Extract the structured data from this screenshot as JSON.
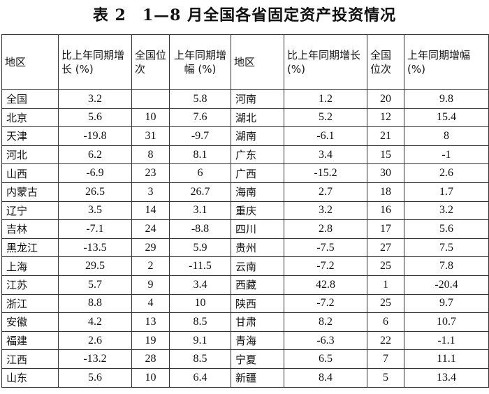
{
  "title": "表 2　1—8 月全国各省固定资产投资情况",
  "headers": {
    "left": [
      "地区",
      "比上年同期增长 (%)",
      "全国位次",
      "上年同期增幅 (%)"
    ],
    "right": [
      "地区",
      "比上年同期增长 (%)",
      "全国位次",
      "上年同期增幅 (%)"
    ]
  },
  "rows": [
    {
      "l": [
        "全国",
        "3.2",
        "",
        "5.8"
      ],
      "r": [
        "河南",
        "1.2",
        "20",
        "9.8"
      ]
    },
    {
      "l": [
        "北京",
        "5.6",
        "10",
        "7.6"
      ],
      "r": [
        "湖北",
        "5.2",
        "12",
        "15.4"
      ]
    },
    {
      "l": [
        "天津",
        "-19.8",
        "31",
        "-9.7"
      ],
      "r": [
        "湖南",
        "-6.1",
        "21",
        "8"
      ]
    },
    {
      "l": [
        "河北",
        "6.2",
        "8",
        "8.1"
      ],
      "r": [
        "广东",
        "3.4",
        "15",
        "-1"
      ]
    },
    {
      "l": [
        "山西",
        "-6.9",
        "23",
        "6"
      ],
      "r": [
        "广西",
        "-15.2",
        "30",
        "2.6"
      ]
    },
    {
      "l": [
        "内蒙古",
        "26.5",
        "3",
        "26.7"
      ],
      "r": [
        "海南",
        "2.7",
        "18",
        "1.7"
      ]
    },
    {
      "l": [
        "辽宁",
        "3.5",
        "14",
        "3.1"
      ],
      "r": [
        "重庆",
        "3.2",
        "16",
        "3.2"
      ]
    },
    {
      "l": [
        "吉林",
        "-7.1",
        "24",
        "-8.8"
      ],
      "r": [
        "四川",
        "2.8",
        "17",
        "5.6"
      ]
    },
    {
      "l": [
        "黑龙江",
        "-13.5",
        "29",
        "5.9"
      ],
      "r": [
        "贵州",
        "-7.5",
        "27",
        "7.5"
      ]
    },
    {
      "l": [
        "上海",
        "29.5",
        "2",
        "-11.5"
      ],
      "r": [
        "云南",
        "-7.2",
        "25",
        "7.8"
      ]
    },
    {
      "l": [
        "江苏",
        "5.7",
        "9",
        "3.4"
      ],
      "r": [
        "西藏",
        "42.8",
        "1",
        "-20.4"
      ]
    },
    {
      "l": [
        "浙江",
        "8.8",
        "4",
        "10"
      ],
      "r": [
        "陕西",
        "-7.2",
        "25",
        "9.7"
      ]
    },
    {
      "l": [
        "安徽",
        "4.2",
        "13",
        "8.5"
      ],
      "r": [
        "甘肃",
        "8.2",
        "6",
        "10.7"
      ]
    },
    {
      "l": [
        "福建",
        "2.6",
        "19",
        "9.1"
      ],
      "r": [
        "青海",
        "-6.3",
        "22",
        "-1.1"
      ]
    },
    {
      "l": [
        "江西",
        "-13.2",
        "28",
        "8.5"
      ],
      "r": [
        "宁夏",
        "6.5",
        "7",
        "11.1"
      ]
    },
    {
      "l": [
        "山东",
        "5.6",
        "10",
        "6.4"
      ],
      "r": [
        "新疆",
        "8.4",
        "5",
        "13.4"
      ]
    }
  ]
}
